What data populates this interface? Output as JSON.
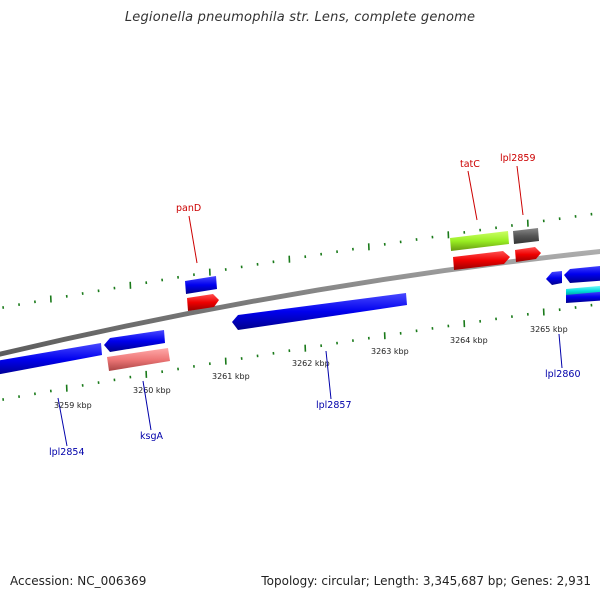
{
  "title": "Legionella pneumophila str. Lens, complete genome",
  "footer": {
    "accession": "Accession: NC_006369",
    "summary": "Topology: circular; Length: 3,345,687 bp; Genes: 2,931"
  },
  "colors": {
    "forward_label": "#cc0000",
    "reverse_label": "#0000aa",
    "tick": "#1a7a1a",
    "backbone": "#8a8a8a"
  },
  "kbp_ticks": [
    {
      "label": "3259 kbp"
    },
    {
      "label": "3260 kbp"
    },
    {
      "label": "3261 kbp"
    },
    {
      "label": "3262 kbp"
    },
    {
      "label": "3263 kbp"
    },
    {
      "label": "3264 kbp"
    },
    {
      "label": "3265 kbp"
    }
  ],
  "genes": [
    {
      "name": "panD",
      "strand": "forward"
    },
    {
      "name": "tatC",
      "strand": "forward"
    },
    {
      "name": "lpl2859",
      "strand": "forward"
    },
    {
      "name": "lpl2854",
      "strand": "reverse"
    },
    {
      "name": "ksgA",
      "strand": "reverse"
    },
    {
      "name": "lpl2857",
      "strand": "reverse"
    },
    {
      "name": "lpl2860",
      "strand": "reverse"
    }
  ]
}
